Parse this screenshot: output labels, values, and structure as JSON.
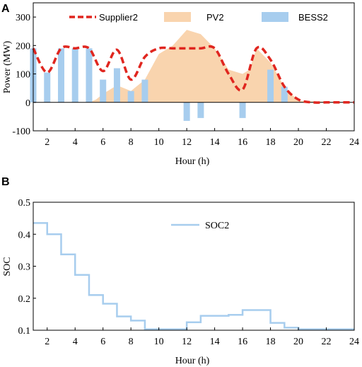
{
  "chart_data": [
    {
      "panel_label": "A",
      "type": "bar",
      "xlabel": "Hour (h)",
      "ylabel": "Power (MW)",
      "xlim": [
        1,
        24
      ],
      "ylim": [
        -100,
        350
      ],
      "xticks": [
        2,
        4,
        6,
        8,
        10,
        12,
        14,
        16,
        18,
        20,
        22,
        24
      ],
      "yticks": [
        -100,
        0,
        100,
        200,
        300
      ],
      "zero_line": true,
      "legend_position": "top",
      "series": [
        {
          "name": "Supplier2",
          "kind": "dashed-line",
          "color": "#e0261f",
          "x": [
            1,
            2,
            3,
            4,
            5,
            6,
            7,
            8,
            9,
            10,
            11,
            12,
            13,
            14,
            15,
            16,
            17,
            18,
            19,
            20,
            21,
            22,
            23,
            24
          ],
          "values": [
            190,
            105,
            190,
            190,
            190,
            110,
            185,
            80,
            160,
            190,
            190,
            190,
            190,
            190,
            100,
            45,
            190,
            150,
            55,
            10,
            0,
            0,
            0,
            0
          ]
        },
        {
          "name": "PV2",
          "kind": "area",
          "color": "#f9d4ae",
          "x": [
            1,
            5,
            5.5,
            6,
            7,
            8,
            9,
            10,
            11,
            12,
            13,
            14,
            15,
            16,
            16.5,
            17,
            18,
            19,
            20,
            24
          ],
          "values": [
            0,
            0,
            10,
            30,
            60,
            40,
            80,
            170,
            200,
            255,
            240,
            190,
            115,
            100,
            115,
            190,
            140,
            55,
            5,
            0
          ]
        },
        {
          "name": "BESS2",
          "kind": "bar",
          "color": "#a7cdee",
          "x": [
            1,
            2,
            3,
            4,
            5,
            6,
            7,
            8,
            9,
            10,
            11,
            12,
            13,
            14,
            15,
            16,
            17,
            18,
            19,
            20,
            21,
            22,
            23,
            24
          ],
          "values": [
            190,
            105,
            190,
            190,
            190,
            80,
            120,
            40,
            80,
            0,
            0,
            -65,
            -55,
            0,
            0,
            -55,
            0,
            115,
            55,
            0,
            0,
            0,
            0,
            0
          ]
        }
      ]
    },
    {
      "panel_label": "B",
      "type": "line",
      "xlabel": "Hour (h)",
      "ylabel": "SOC",
      "xlim": [
        1,
        24
      ],
      "ylim": [
        0.1,
        0.5
      ],
      "xticks": [
        2,
        4,
        6,
        8,
        10,
        12,
        14,
        16,
        18,
        20,
        22,
        24
      ],
      "yticks": [
        0.1,
        0.2,
        0.3,
        0.4,
        0.5
      ],
      "legend_position": "top-center",
      "series": [
        {
          "name": "SOC2",
          "kind": "step-line",
          "color": "#a7cdee",
          "x": [
            1,
            2,
            3,
            4,
            5,
            6,
            7,
            8,
            9,
            10,
            11,
            12,
            13,
            14,
            15,
            16,
            17,
            18,
            19,
            20,
            21,
            22,
            23,
            24
          ],
          "values": [
            0.435,
            0.4,
            0.337,
            0.273,
            0.21,
            0.183,
            0.143,
            0.13,
            0.103,
            0.103,
            0.103,
            0.125,
            0.145,
            0.145,
            0.148,
            0.163,
            0.163,
            0.123,
            0.108,
            0.103,
            0.103,
            0.103,
            0.103,
            0.103
          ]
        }
      ]
    }
  ]
}
